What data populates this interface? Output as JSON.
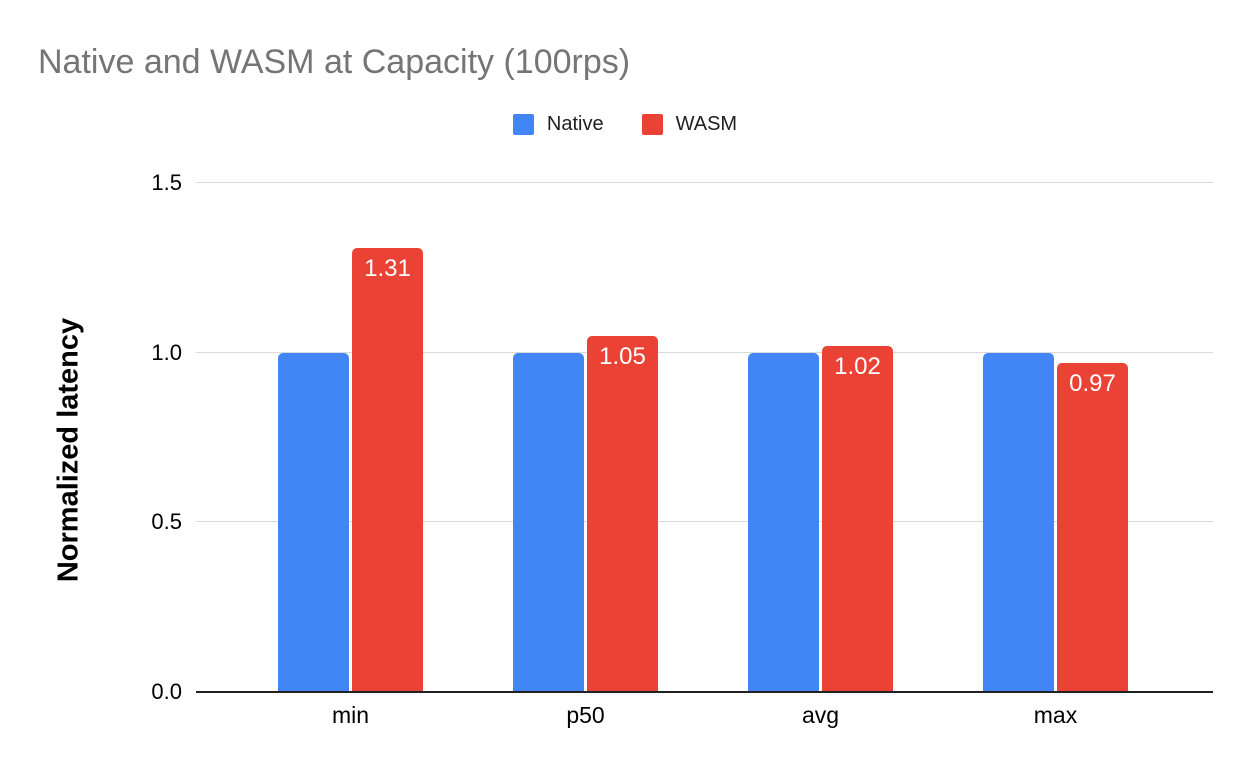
{
  "chart_data": {
    "type": "bar",
    "title": "Native and WASM at Capacity (100rps)",
    "ylabel": "Normalized latency",
    "xlabel": "",
    "categories": [
      "min",
      "p50",
      "avg",
      "max"
    ],
    "series": [
      {
        "name": "Native",
        "color": "#4285F4",
        "values": [
          1.0,
          1.0,
          1.0,
          1.0
        ],
        "labels": [
          "",
          "",
          "",
          ""
        ]
      },
      {
        "name": "WASM",
        "color": "#EA4335",
        "values": [
          1.31,
          1.05,
          1.02,
          0.97
        ],
        "labels": [
          "1.31",
          "1.05",
          "1.02",
          "0.97"
        ]
      }
    ],
    "ylim": [
      0,
      1.5
    ],
    "yticks": [
      {
        "value": 0.0,
        "label": "0.0"
      },
      {
        "value": 0.5,
        "label": "0.5"
      },
      {
        "value": 1.0,
        "label": "1.0"
      },
      {
        "value": 1.5,
        "label": "1.5"
      }
    ],
    "grid": true,
    "legend_position": "top",
    "colors": {
      "title_text": "#757575",
      "gridline": "#d9d9d9",
      "axis_line": "#212121",
      "tick_text": "#000000",
      "bar_value_label_text": "#ffffff"
    }
  }
}
